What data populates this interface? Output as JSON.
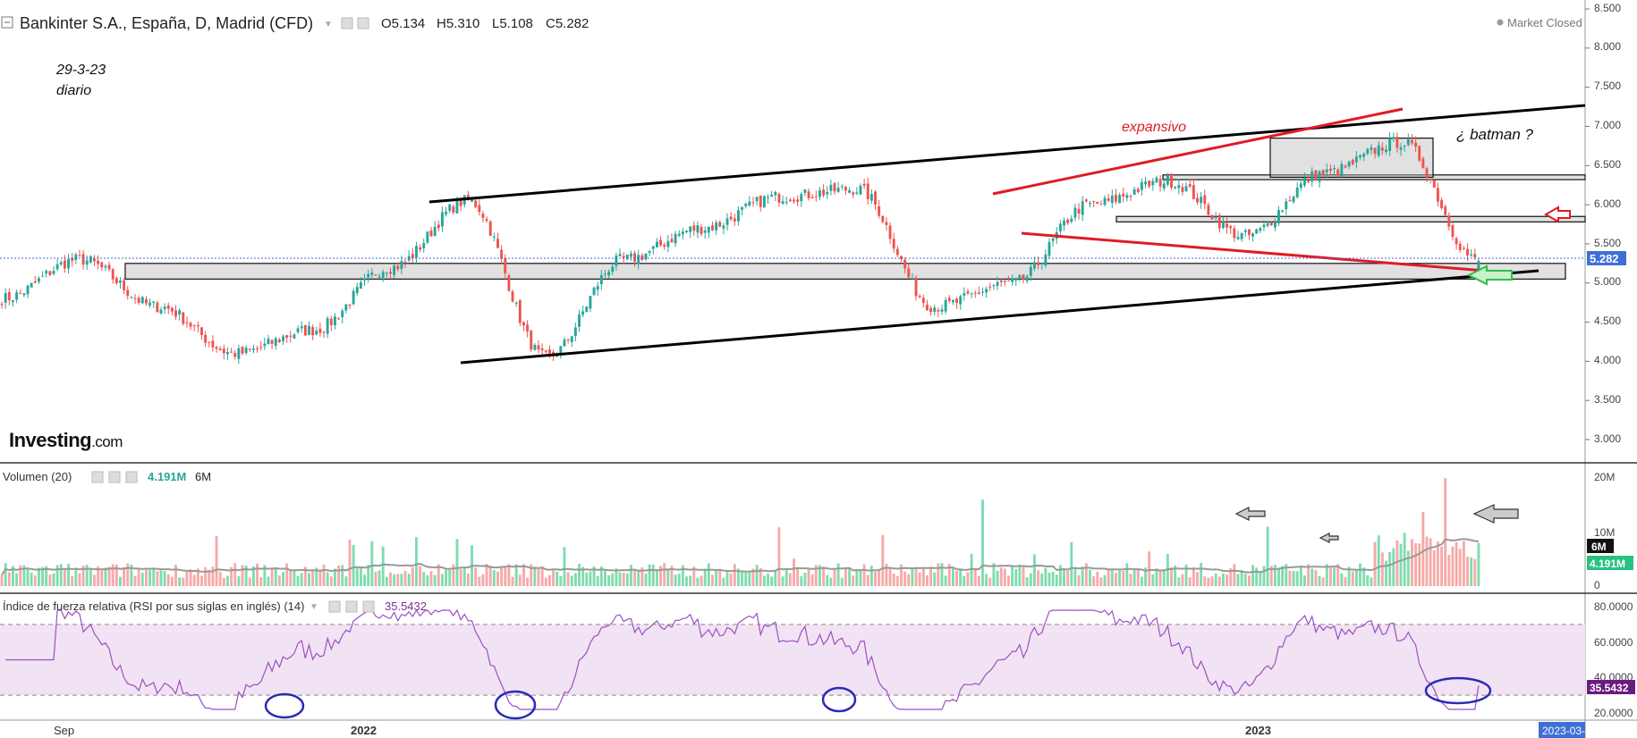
{
  "header": {
    "title": "Bankinter S.A., España, D, Madrid (CFD)",
    "ohlc": {
      "o": "O5.134",
      "h": "H5.310",
      "l": "L5.108",
      "c": "C5.282"
    },
    "market_status": "Market Closed"
  },
  "annotations": {
    "date": "29-3-23",
    "period": "diario",
    "expansivo": "expansivo",
    "batman": "¿ batman ?"
  },
  "brand": {
    "main": "Investing",
    "suffix": ".com"
  },
  "price_pane": {
    "y_ticks": [
      "8.500",
      "8.000",
      "7.500",
      "7.000",
      "6.500",
      "6.000",
      "5.500",
      "5.000",
      "4.500",
      "4.000",
      "3.500",
      "3.000"
    ],
    "last_price": "5.282",
    "ylim": [
      2.6,
      8.55
    ]
  },
  "volume_pane": {
    "label": "Volumen (20)",
    "value": "4.191M",
    "ma_value": "6M",
    "y_ticks": [
      "20M",
      "10M",
      "0"
    ],
    "ma_badge": "6M",
    "value_badge": "4.191M"
  },
  "rsi_pane": {
    "label": "Índice de fuerza relativa (RSI por sus siglas en inglés) (14)",
    "value": "35.5432",
    "y_ticks": [
      "80.0000",
      "60.0000",
      "40.0000",
      "20.0000"
    ],
    "value_badge": "35.5432",
    "upper_band": 70,
    "lower_band": 30
  },
  "x_axis": {
    "labels": [
      "Sep",
      "2022",
      "2023"
    ],
    "current_date": "2023-03-"
  },
  "colors": {
    "up": "#26a69a",
    "up_volume": "#7fdcb0",
    "down": "#ef5350",
    "down_volume": "#f6aaa8",
    "trendline": "#000000",
    "annotation_red": "#e01b24",
    "rsi_line": "#9c4fc4",
    "rsi_band": "#f1e3f3",
    "rsi_badge": "#6a1b7f",
    "price_badge": "#3f6fd6",
    "volume_badge": "#26c281",
    "ellipse": "#2b2bb5"
  },
  "chart_data": {
    "type": "candlestick",
    "symbol": "Bankinter S.A., España, D, Madrid (CFD)",
    "interval": "D",
    "last": {
      "open": 5.134,
      "high": 5.31,
      "low": 5.108,
      "close": 5.282
    },
    "price_key_points": [
      {
        "x": "2021-08",
        "y": 4.8
      },
      {
        "x": "2021-09",
        "y": 5.3
      },
      {
        "x": "2021-10",
        "y": 4.7
      },
      {
        "x": "2021-11",
        "y": 4.1
      },
      {
        "x": "2021-12",
        "y": 4.4
      },
      {
        "x": "2022-01",
        "y": 5.2
      },
      {
        "x": "2022-02",
        "y": 6.05
      },
      {
        "x": "2022-03",
        "y": 4.05
      },
      {
        "x": "2022-04",
        "y": 5.3
      },
      {
        "x": "2022-05",
        "y": 5.7
      },
      {
        "x": "2022-06",
        "y": 6.1
      },
      {
        "x": "2022-07",
        "y": 6.2
      },
      {
        "x": "2022-08",
        "y": 4.7
      },
      {
        "x": "2022-09",
        "y": 5.0
      },
      {
        "x": "2022-10",
        "y": 6.0
      },
      {
        "x": "2022-11",
        "y": 6.3
      },
      {
        "x": "2022-12",
        "y": 5.6
      },
      {
        "x": "2023-01",
        "y": 6.4
      },
      {
        "x": "2023-02",
        "y": 6.8
      },
      {
        "x": "2023-03",
        "y": 5.282
      }
    ],
    "volume_spikes_millions": [
      16,
      11,
      20
    ],
    "rsi_last": 35.5432,
    "rsi_bands": [
      30,
      70
    ],
    "ylim_price": [
      3.0,
      8.5
    ],
    "ylim_rsi": [
      20,
      80
    ],
    "ylim_volume": [
      0,
      20
    ]
  }
}
